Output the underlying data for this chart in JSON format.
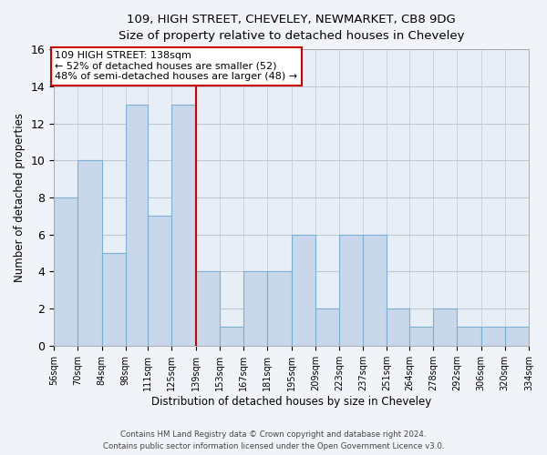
{
  "title": "109, HIGH STREET, CHEVELEY, NEWMARKET, CB8 9DG",
  "subtitle": "Size of property relative to detached houses in Cheveley",
  "xlabel": "Distribution of detached houses by size in Cheveley",
  "ylabel": "Number of detached properties",
  "bin_edges": [
    56,
    70,
    84,
    98,
    111,
    125,
    139,
    153,
    167,
    181,
    195,
    209,
    223,
    237,
    251,
    264,
    278,
    292,
    306,
    320,
    334
  ],
  "bin_labels": [
    "56sqm",
    "70sqm",
    "84sqm",
    "98sqm",
    "111sqm",
    "125sqm",
    "139sqm",
    "153sqm",
    "167sqm",
    "181sqm",
    "195sqm",
    "209sqm",
    "223sqm",
    "237sqm",
    "251sqm",
    "264sqm",
    "278sqm",
    "292sqm",
    "306sqm",
    "320sqm",
    "334sqm"
  ],
  "counts": [
    8,
    10,
    5,
    13,
    7,
    13,
    4,
    1,
    4,
    4,
    6,
    2,
    6,
    6,
    2,
    1,
    2,
    1,
    1,
    1
  ],
  "bar_color": "#c8d8ea",
  "bar_edge_color": "#7bafd4",
  "reference_line_x": 139,
  "reference_line_color": "#cc0000",
  "annotation_text": "109 HIGH STREET: 138sqm\n← 52% of detached houses are smaller (52)\n48% of semi-detached houses are larger (48) →",
  "annotation_box_color": "#ffffff",
  "annotation_box_edge_color": "#cc0000",
  "ylim": [
    0,
    16
  ],
  "yticks": [
    0,
    2,
    4,
    6,
    8,
    10,
    12,
    14,
    16
  ],
  "footer_line1": "Contains HM Land Registry data © Crown copyright and database right 2024.",
  "footer_line2": "Contains public sector information licensed under the Open Government Licence v3.0.",
  "bg_color": "#f0f4f8",
  "plot_bg_color": "#e8eef5",
  "grid_color": "#c0c8d4"
}
